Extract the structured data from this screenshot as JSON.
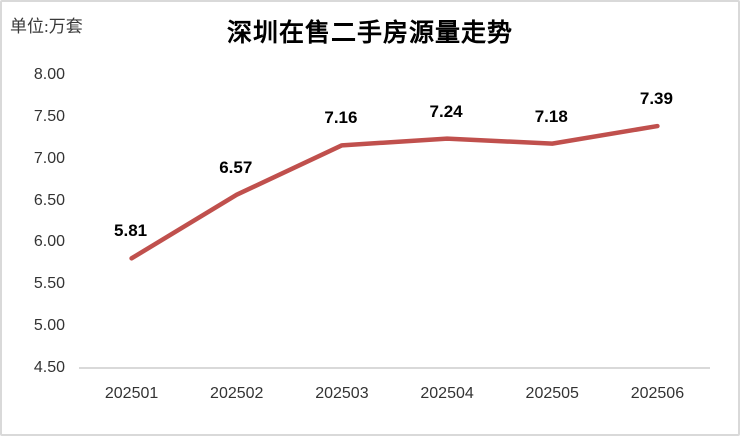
{
  "chart_data": {
    "type": "line",
    "title": "深圳在售二手房源量走势",
    "unit_label": "单位:万套",
    "categories": [
      "202501",
      "202502",
      "202503",
      "202504",
      "202505",
      "202506"
    ],
    "values": [
      5.81,
      6.57,
      7.16,
      7.24,
      7.18,
      7.39
    ],
    "data_labels": [
      "5.81",
      "6.57",
      "7.16",
      "7.24",
      "7.18",
      "7.39"
    ],
    "yticks": [
      "8.00",
      "7.50",
      "7.00",
      "6.50",
      "6.00",
      "5.50",
      "5.00",
      "4.50"
    ],
    "ylim": [
      4.5,
      8.0
    ],
    "ytick_step": 0.5,
    "grid": false,
    "legend": "none",
    "line_color": "#c0504d",
    "axis_line_color": "#d9d9d9",
    "frame_border_color": "#d9d9d9"
  }
}
